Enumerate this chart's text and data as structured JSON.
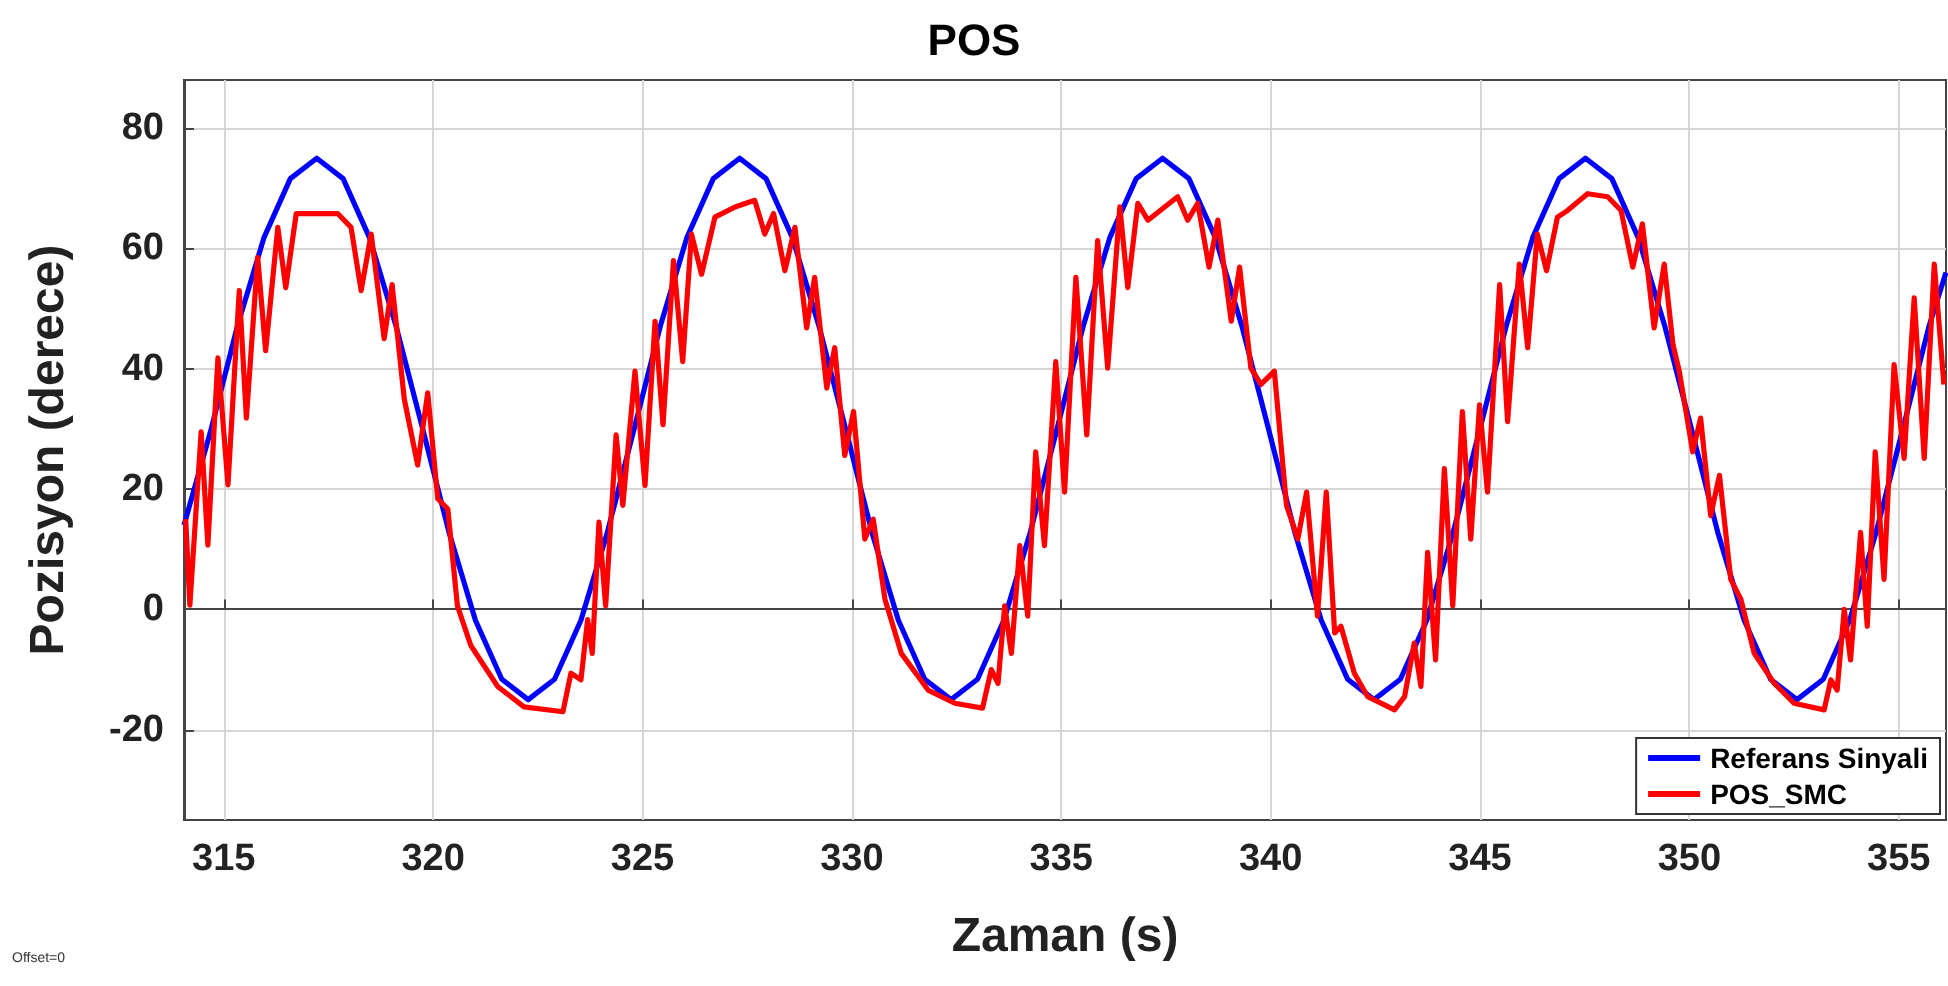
{
  "chart_data": {
    "type": "line",
    "title": "POS",
    "xlabel": "Zaman (s)",
    "ylabel": "Pozisyon (derece)",
    "annotations": [
      "Offset=0"
    ],
    "xlim": [
      314.05,
      356.13
    ],
    "xticks": [
      315,
      320,
      325,
      330,
      335,
      340,
      345,
      350,
      355
    ],
    "ylim": [
      -35,
      88
    ],
    "yticks": [
      -20,
      0,
      20,
      40,
      60,
      80
    ],
    "grid": true,
    "legend": "bottom right",
    "series": [
      {
        "name": "Referans Sinyali",
        "color": "#0000ff",
        "x": [
          314.05,
          314.7,
          315.33,
          315.96,
          316.59,
          317.22,
          317.85,
          318.48,
          319.11,
          319.75,
          320.38,
          321.01,
          321.64,
          322.27,
          322.9,
          323.53,
          324.16,
          324.8,
          325.43,
          326.06,
          326.69,
          327.32,
          327.95,
          328.58,
          329.21,
          329.85,
          330.48,
          331.11,
          331.74,
          332.37,
          333.0,
          333.63,
          334.26,
          334.9,
          335.53,
          336.16,
          336.79,
          337.42,
          338.05,
          338.68,
          339.31,
          339.95,
          340.58,
          341.21,
          341.84,
          342.47,
          343.1,
          343.73,
          344.36,
          345.0,
          345.63,
          346.26,
          346.89,
          347.52,
          348.15,
          348.78,
          349.41,
          350.05,
          350.68,
          351.31,
          351.94,
          352.57,
          353.2,
          353.83,
          354.46,
          355.1,
          355.73,
          356.13
        ],
        "values": [
          14,
          30,
          47.2,
          61.8,
          71.6,
          75,
          71.6,
          61.8,
          47.2,
          30,
          12.8,
          -1.8,
          -11.6,
          -15,
          -11.6,
          -1.8,
          12.8,
          30,
          47.2,
          61.8,
          71.6,
          75,
          71.6,
          61.8,
          47.2,
          30,
          12.8,
          -1.8,
          -11.6,
          -15,
          -11.6,
          -1.8,
          12.8,
          30,
          47.2,
          61.8,
          71.6,
          75,
          71.6,
          61.8,
          47.2,
          30,
          12.8,
          -1.8,
          -11.6,
          -15,
          -11.6,
          -1.8,
          12.8,
          30,
          47.2,
          61.8,
          71.6,
          75,
          71.6,
          61.8,
          47.2,
          30,
          12.8,
          -1.8,
          -11.6,
          -15,
          -11.6,
          -1.8,
          12.8,
          30,
          47.2,
          56
        ]
      },
      {
        "name": "POS_SMC",
        "color": "#ff0000",
        "x": [
          314.09,
          314.19,
          314.46,
          314.62,
          314.86,
          315.1,
          315.37,
          315.54,
          315.81,
          316.0,
          316.29,
          316.48,
          316.73,
          317.4,
          317.72,
          318.04,
          318.28,
          318.52,
          318.83,
          319.02,
          319.31,
          319.63,
          319.87,
          320.11,
          320.35,
          320.58,
          320.9,
          321.54,
          322.17,
          323.1,
          323.29,
          323.53,
          323.69,
          323.8,
          323.96,
          324.12,
          324.37,
          324.53,
          324.82,
          325.06,
          325.3,
          325.49,
          325.74,
          325.96,
          326.17,
          326.41,
          326.73,
          327.21,
          327.68,
          327.92,
          328.13,
          328.4,
          328.64,
          328.92,
          329.11,
          329.4,
          329.59,
          329.83,
          330.04,
          330.31,
          330.51,
          330.79,
          331.18,
          331.82,
          332.46,
          333.12,
          333.33,
          333.49,
          333.65,
          333.81,
          334.01,
          334.2,
          334.39,
          334.6,
          334.87,
          335.08,
          335.35,
          335.61,
          335.87,
          336.11,
          336.4,
          336.59,
          336.83,
          337.07,
          337.78,
          338.02,
          338.26,
          338.53,
          338.74,
          339.06,
          339.26,
          339.53,
          339.77,
          340.09,
          340.38,
          340.65,
          340.86,
          341.12,
          341.33,
          341.53,
          341.68,
          342.0,
          342.32,
          342.96,
          343.2,
          343.43,
          343.59,
          343.75,
          343.94,
          344.15,
          344.35,
          344.58,
          344.78,
          344.99,
          345.18,
          345.47,
          345.66,
          345.94,
          346.14,
          346.37,
          346.59,
          346.85,
          347.09,
          347.57,
          348.05,
          348.37,
          348.65,
          348.88,
          349.16,
          349.4,
          349.61,
          349.76,
          350.08,
          350.27,
          350.51,
          350.72,
          350.99,
          351.23,
          351.55,
          352.03,
          352.5,
          353.22,
          353.38,
          353.53,
          353.7,
          353.85,
          354.09,
          354.25,
          354.44,
          354.65,
          354.89,
          355.13,
          355.37,
          355.61,
          355.85,
          356.08
        ],
        "values": [
          15,
          0.7,
          29.5,
          10.7,
          41.8,
          20.7,
          53,
          31.8,
          58.5,
          43,
          63.5,
          53.5,
          65.8,
          65.8,
          65.8,
          63.5,
          53,
          62.4,
          45,
          54,
          35,
          24,
          36,
          18.4,
          16.7,
          0.6,
          -6,
          -12.8,
          -16.2,
          -17,
          -10.6,
          -11.7,
          -1.7,
          -7.3,
          14.5,
          0.6,
          29,
          17.3,
          39.6,
          20.6,
          47.9,
          30.7,
          58,
          41.2,
          62.4,
          55.7,
          65.2,
          66.9,
          68,
          62.4,
          65.8,
          56.3,
          63.5,
          46.8,
          55.2,
          36.8,
          43.5,
          25.6,
          32.9,
          11.7,
          15,
          1.7,
          -7.3,
          -13.4,
          -15.6,
          -16.4,
          -10,
          -12.3,
          0.6,
          -7.3,
          10.6,
          -1.1,
          26.2,
          10.6,
          41.2,
          19.5,
          55.2,
          29,
          61.3,
          40.1,
          66.9,
          53.5,
          67.5,
          64.7,
          68.6,
          64.7,
          67.5,
          56.9,
          64.7,
          47.9,
          56.9,
          40.1,
          37.4,
          39.6,
          17.3,
          11.7,
          19.5,
          -1.1,
          19.5,
          -3.9,
          -2.8,
          -10.6,
          -14.5,
          -16.7,
          -14.5,
          -5.6,
          -12.8,
          9.5,
          -8.4,
          23.4,
          0.6,
          32.9,
          11.7,
          34,
          19.5,
          54,
          31.2,
          57.4,
          43.5,
          62.4,
          56.3,
          65.2,
          66.3,
          69.1,
          68.6,
          66.3,
          56.9,
          64.1,
          46.8,
          57.4,
          44,
          39.6,
          26.2,
          31.8,
          15.6,
          22.3,
          5,
          1.7,
          -7.3,
          -12.3,
          -15.6,
          -16.7,
          -11.7,
          -13.4,
          0,
          -8.4,
          12.8,
          -2.8,
          26.2,
          5,
          40.7,
          25.1,
          51.8,
          25.1,
          57.4,
          37.4
        ]
      }
    ]
  }
}
